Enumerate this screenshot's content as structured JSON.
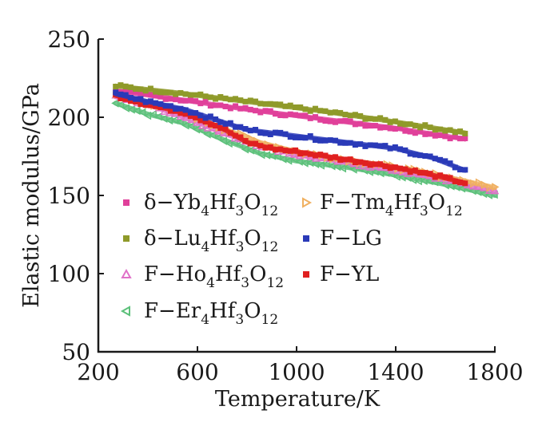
{
  "chart_data": {
    "type": "line",
    "title": "",
    "xlabel": "Temperature/K",
    "ylabel": "Elastic modulus/GPa",
    "xlim": [
      200,
      1800
    ],
    "ylim": [
      50,
      250
    ],
    "xticks": [
      200,
      600,
      1000,
      1400,
      1800
    ],
    "yticks": [
      50,
      100,
      150,
      200,
      250
    ],
    "grid": false,
    "legend_position": "lower-left inside plot",
    "series": [
      {
        "name": "δ−Yb4Hf3O12",
        "legend": {
          "prefix": "δ−Yb",
          "parts": [
            [
              "4",
              "sub"
            ],
            [
              "Hf",
              "text"
            ],
            [
              "3",
              "sub"
            ],
            [
              "O",
              "text"
            ],
            [
              "12",
              "sub"
            ]
          ]
        },
        "color": "#e0409a",
        "marker": "square",
        "column": 0,
        "x": [
          270,
          500,
          800,
          1100,
          1400,
          1680
        ],
        "y": [
          217,
          212,
          205,
          199,
          193,
          186
        ]
      },
      {
        "name": "δ−Lu4Hf3O12",
        "legend": {
          "prefix": "δ−Lu",
          "parts": [
            [
              "4",
              "sub"
            ],
            [
              "Hf",
              "text"
            ],
            [
              "3",
              "sub"
            ],
            [
              "O",
              "text"
            ],
            [
              "12",
              "sub"
            ]
          ]
        },
        "color": "#8f9a2a",
        "marker": "square",
        "column": 0,
        "x": [
          270,
          500,
          800,
          1100,
          1400,
          1680
        ],
        "y": [
          220,
          216,
          210,
          204,
          197,
          190
        ]
      },
      {
        "name": "F−Ho4Hf3O12",
        "legend": {
          "prefix": "F−Ho",
          "parts": [
            [
              "4",
              "sub"
            ],
            [
              "Hf",
              "text"
            ],
            [
              "3",
              "sub"
            ],
            [
              "O",
              "text"
            ],
            [
              "12",
              "sub"
            ]
          ]
        },
        "color": "#e070c8",
        "marker": "triangle",
        "column": 0,
        "x": [
          270,
          400,
          550,
          700,
          850,
          1000,
          1200,
          1400,
          1600,
          1800
        ],
        "y": [
          213,
          208,
          200,
          190,
          182,
          176,
          171,
          166,
          160,
          153
        ]
      },
      {
        "name": "F−Er4Hf3O12",
        "legend": {
          "prefix": "F−Er",
          "parts": [
            [
              "4",
              "sub"
            ],
            [
              "Hf",
              "text"
            ],
            [
              "3",
              "sub"
            ],
            [
              "O",
              "text"
            ],
            [
              "12",
              "sub"
            ]
          ]
        },
        "color": "#5cc07a",
        "marker": "triangle-left",
        "column": 0,
        "x": [
          270,
          400,
          550,
          700,
          850,
          1000,
          1200,
          1400,
          1600,
          1800
        ],
        "y": [
          209,
          202,
          196,
          186,
          177,
          172,
          168,
          163,
          157,
          150
        ]
      },
      {
        "name": "F−Tm4Hf3O12",
        "legend": {
          "prefix": "F−Tm",
          "parts": [
            [
              "4",
              "sub"
            ],
            [
              "Hf",
              "text"
            ],
            [
              "3",
              "sub"
            ],
            [
              "O",
              "text"
            ],
            [
              "12",
              "sub"
            ]
          ]
        },
        "color": "#f0b060",
        "marker": "triangle-right",
        "column": 1,
        "x": [
          270,
          400,
          550,
          700,
          850,
          1000,
          1200,
          1400,
          1600,
          1800
        ],
        "y": [
          214,
          209,
          203,
          193,
          184,
          178,
          173,
          168,
          162,
          155
        ]
      },
      {
        "name": "F−LG",
        "legend": {
          "prefix": "F−LG",
          "parts": []
        },
        "color": "#2a3ab8",
        "marker": "square",
        "column": 1,
        "x": [
          270,
          400,
          550,
          700,
          800,
          1000,
          1200,
          1400,
          1550,
          1680
        ],
        "y": [
          215,
          210,
          205,
          197,
          192,
          188,
          184,
          180,
          174,
          166
        ]
      },
      {
        "name": "F−YL",
        "legend": {
          "prefix": "F−YL",
          "parts": []
        },
        "color": "#e02020",
        "marker": "square",
        "column": 1,
        "x": [
          270,
          400,
          550,
          700,
          800,
          900,
          1000,
          1200,
          1400,
          1550,
          1680
        ],
        "y": [
          214,
          208,
          203,
          193,
          184,
          180,
          178,
          173,
          168,
          163,
          158
        ]
      }
    ]
  }
}
